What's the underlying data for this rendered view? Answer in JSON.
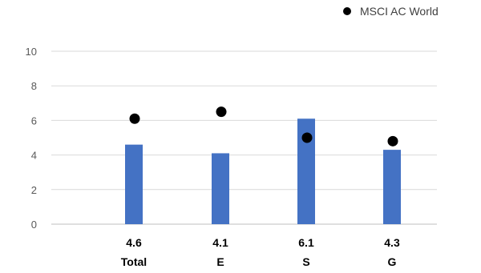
{
  "chart_data": {
    "type": "bar",
    "title": "",
    "xlabel": "",
    "ylabel": "",
    "ylim": [
      0,
      10
    ],
    "yticks": [
      0,
      2,
      4,
      6,
      8,
      10
    ],
    "grid": true,
    "legend_position": "top-right",
    "categories": [
      "Total",
      "E",
      "S",
      "G"
    ],
    "value_labels": [
      "4.6",
      "4.1",
      "6.1",
      "4.3"
    ],
    "series": [
      {
        "kind": "bar",
        "values": [
          4.6,
          4.1,
          6.1,
          4.3
        ],
        "color": "#4472C4"
      },
      {
        "kind": "scatter",
        "name": "MSCI AC World",
        "values": [
          6.1,
          6.5,
          5.0,
          4.8
        ],
        "color": "#000000"
      }
    ],
    "colors": {
      "grid": "#d9d9d9",
      "axis": "#bfbfbf"
    }
  }
}
